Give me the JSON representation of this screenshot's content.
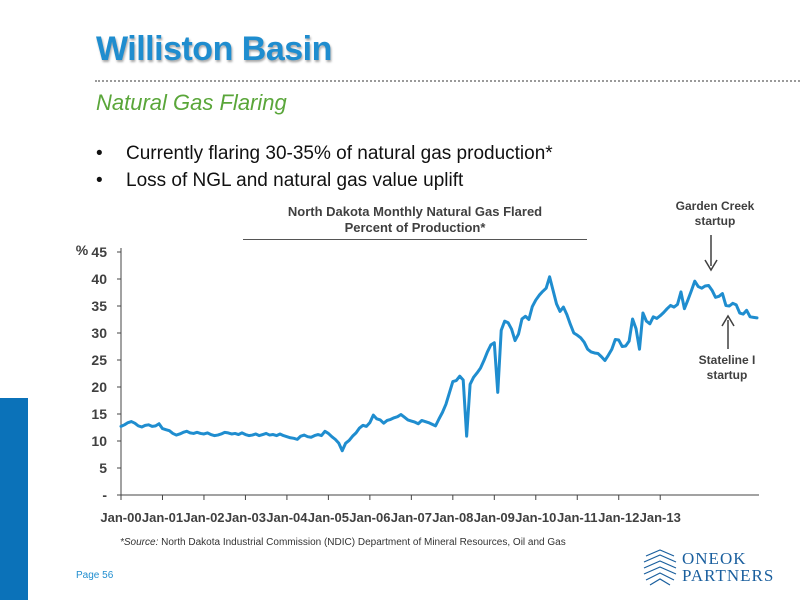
{
  "header": {
    "title": "Williston Basin",
    "subtitle": "Natural Gas Flaring"
  },
  "bullets": [
    "Currently flaring 30-35% of natural gas production*",
    "Loss of NGL and natural gas value uplift"
  ],
  "bullet_symbol": "•",
  "annotations": {
    "garden_creek": [
      "Garden Creek",
      "startup"
    ],
    "stateline": [
      "Stateline I",
      "startup"
    ]
  },
  "source": {
    "prefix": "*Source:",
    "text": " North Dakota Industrial Commission (NDIC) Department of Mineral Resources, Oil and Gas"
  },
  "page_label": "Page 56",
  "logo": {
    "line1": "ONEOK",
    "line2": "PARTNERS"
  },
  "colors": {
    "title": "#1f8dcf",
    "subtitle": "#5aa63a",
    "line": "#1f8dcf",
    "sidebar": "#0b72b9"
  },
  "chart_data": {
    "type": "line",
    "title": "North Dakota Monthly Natural Gas Flared",
    "subtitle": "Percent of Production*",
    "ylabel": "%",
    "ylim": [
      0,
      45
    ],
    "yticks": [
      0,
      5,
      10,
      15,
      20,
      25,
      30,
      35,
      40,
      45
    ],
    "ytick_labels": [
      "-",
      "5",
      "10",
      "15",
      "20",
      "25",
      "30",
      "35",
      "40",
      "45"
    ],
    "xticks": [
      "Jan-00",
      "Jan-01",
      "Jan-02",
      "Jan-03",
      "Jan-04",
      "Jan-05",
      "Jan-06",
      "Jan-07",
      "Jan-08",
      "Jan-09",
      "Jan-10",
      "Jan-11",
      "Jan-12",
      "Jan-13"
    ],
    "grid": false,
    "series": [
      {
        "name": "",
        "x_start": "Jan-00",
        "x_end": "Feb-13",
        "frequency": "monthly",
        "values": [
          12.7,
          13.0,
          13.4,
          13.6,
          13.3,
          12.8,
          12.6,
          12.9,
          13.0,
          12.7,
          12.8,
          13.2,
          12.3,
          12.1,
          11.9,
          11.4,
          11.1,
          11.3,
          11.6,
          11.8,
          11.5,
          11.4,
          11.6,
          11.4,
          11.3,
          11.5,
          11.2,
          11.0,
          11.1,
          11.3,
          11.6,
          11.5,
          11.3,
          11.4,
          11.2,
          11.5,
          11.2,
          11.0,
          11.1,
          11.3,
          11.0,
          11.2,
          11.4,
          11.1,
          11.2,
          11.0,
          11.3,
          11.0,
          10.8,
          10.6,
          10.5,
          10.3,
          10.9,
          11.1,
          10.8,
          10.7,
          11.0,
          11.2,
          11.0,
          11.8,
          11.4,
          10.8,
          10.3,
          9.6,
          8.2,
          9.6,
          10.1,
          10.9,
          11.5,
          12.4,
          12.9,
          12.7,
          13.4,
          14.8,
          14.1,
          13.9,
          13.3,
          13.8,
          14.0,
          14.3,
          14.5,
          14.9,
          14.4,
          13.9,
          13.7,
          13.5,
          13.2,
          13.8,
          13.6,
          13.4,
          13.1,
          12.8,
          14.1,
          15.3,
          16.8,
          18.9,
          21.0,
          21.2,
          22.0,
          21.3,
          10.9,
          20.5,
          21.8,
          22.6,
          23.5,
          24.9,
          26.5,
          27.8,
          28.2,
          19.0,
          30.5,
          32.2,
          31.9,
          30.7,
          28.6,
          29.8,
          32.6,
          33.1,
          32.5,
          34.9,
          36.1,
          37.0,
          37.7,
          38.3,
          40.4,
          37.9,
          35.4,
          34.0,
          34.8,
          33.4,
          31.6,
          30.0,
          29.6,
          29.1,
          28.3,
          27.0,
          26.5,
          26.3,
          26.2,
          25.6,
          24.9,
          25.9,
          27.0,
          28.8,
          28.7,
          27.5,
          27.6,
          28.5,
          32.6,
          30.8,
          27.0,
          33.7,
          32.2,
          31.7,
          33.0,
          32.7,
          33.2,
          33.8,
          34.5,
          35.1,
          34.8,
          35.3,
          37.6,
          34.5,
          36.1,
          37.8,
          39.6,
          38.6,
          38.3,
          38.7,
          38.8,
          37.9,
          36.6,
          36.8,
          37.3,
          35.1,
          35.0,
          35.5,
          35.2,
          33.7,
          33.5,
          34.2,
          33.0,
          32.9,
          32.8
        ]
      }
    ]
  }
}
